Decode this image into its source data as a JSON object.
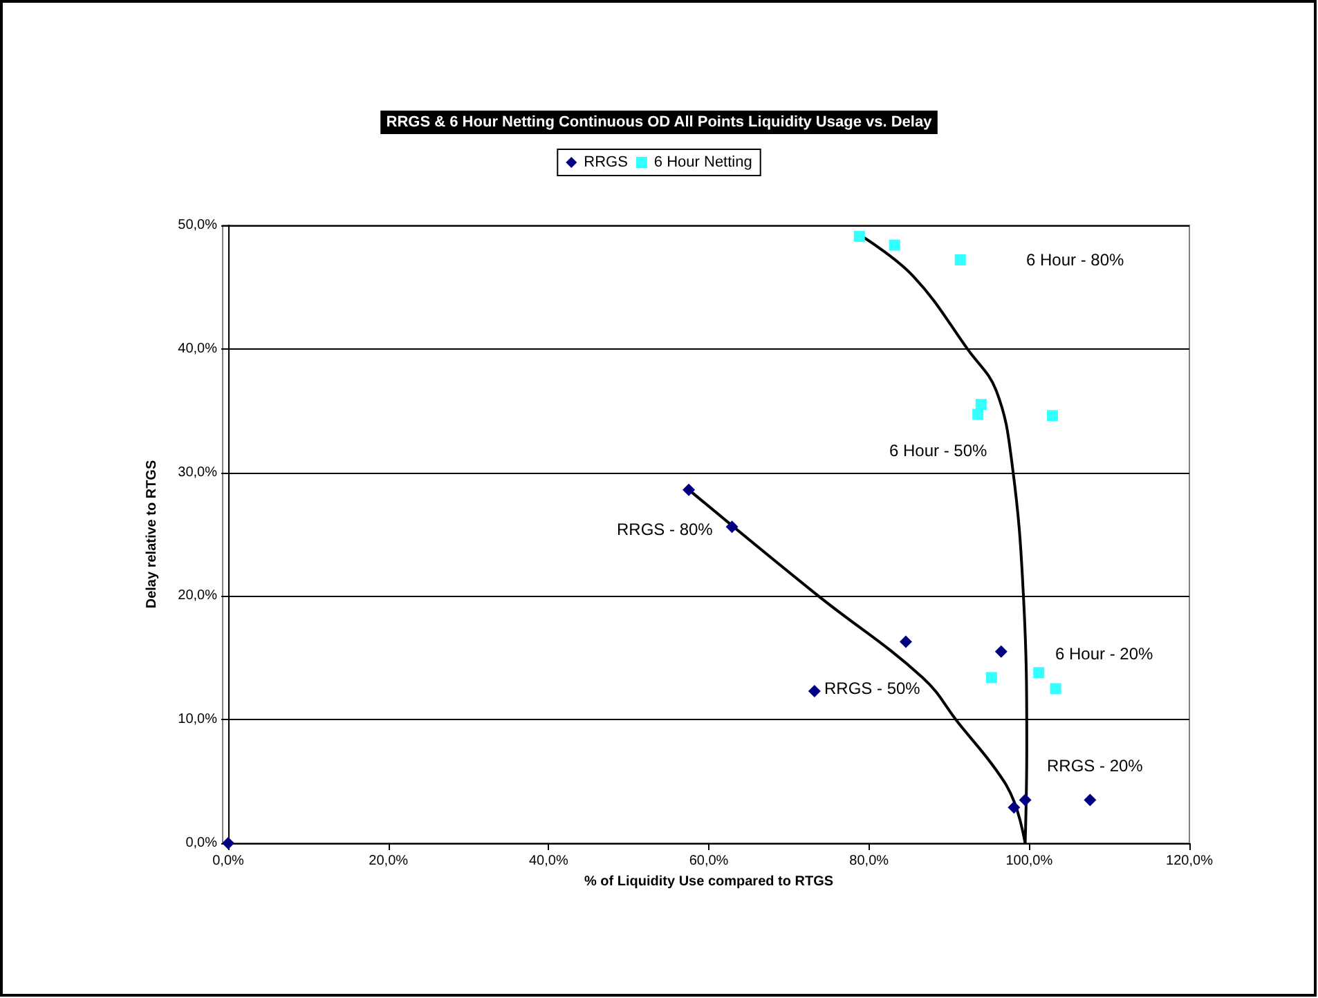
{
  "chart_data": {
    "type": "scatter",
    "title": "RRGS & 6 Hour Netting Continuous OD All Points Liquidity Usage vs. Delay",
    "xlabel": "% of Liquidity Use compared to RTGS",
    "ylabel": "Delay relative to RTGS",
    "series": [
      {
        "name": "RRGS",
        "color": "#000080",
        "marker": "diamond",
        "x": [
          0,
          57.5,
          62.9,
          73.2,
          84.6,
          96.5,
          98.1,
          99.5,
          107.6
        ],
        "values": [
          0,
          28.6,
          25.6,
          12.3,
          16.3,
          15.5,
          2.9,
          3.5,
          3.5
        ]
      },
      {
        "name": "6 Hour Netting",
        "color": "#33ffff",
        "marker": "square",
        "x": [
          78.8,
          83.2,
          91.4,
          94.0,
          93.6,
          102.9,
          95.3,
          101.2,
          103.3
        ],
        "values": [
          49.1,
          48.4,
          47.2,
          35.5,
          34.7,
          34.6,
          13.4,
          13.8,
          12.5
        ]
      },
      {
        "type": "line",
        "color": "#000000",
        "marker": "none",
        "x": [
          57.5,
          73.5,
          86.7,
          91.2,
          95.9,
          98.1,
          99.5
        ],
        "values": [
          28.6,
          20.1,
          13.4,
          9.7,
          5.9,
          3.4,
          0
        ]
      },
      {
        "type": "line",
        "color": "#000000",
        "marker": "none",
        "x": [
          78.9,
          85.5,
          92.4,
          95.9,
          97.9,
          99.3,
          99.7,
          99.5
        ],
        "values": [
          49.2,
          45.9,
          39.9,
          36.6,
          30.5,
          19.8,
          7.8,
          0
        ]
      }
    ],
    "annotations": [
      "6 Hour - 80%",
      "6 Hour - 50%",
      "RRGS - 80%",
      "RRGS - 50%",
      "6 Hour - 20%",
      "RRGS - 20%"
    ],
    "xlim": [
      0,
      120
    ],
    "xticks": [
      {
        "value": 0,
        "label": "0,0%"
      },
      {
        "value": 20,
        "label": "20,0%"
      },
      {
        "value": 40,
        "label": "40,0%"
      },
      {
        "value": 60,
        "label": "60,0%"
      },
      {
        "value": 80,
        "label": "80,0%"
      },
      {
        "value": 100,
        "label": "100,0%"
      },
      {
        "value": 120,
        "label": "120,0%"
      }
    ],
    "ylim": [
      0,
      50
    ],
    "yticks": [
      {
        "value": 0,
        "label": "0,0%"
      },
      {
        "value": 10,
        "label": "10,0%"
      },
      {
        "value": 20,
        "label": "20,0%"
      },
      {
        "value": 30,
        "label": "30,0%"
      },
      {
        "value": 40,
        "label": "40,0%"
      },
      {
        "value": 50,
        "label": "50,0%"
      }
    ],
    "grid": "y",
    "legend": "top",
    "line_style": "solid"
  }
}
